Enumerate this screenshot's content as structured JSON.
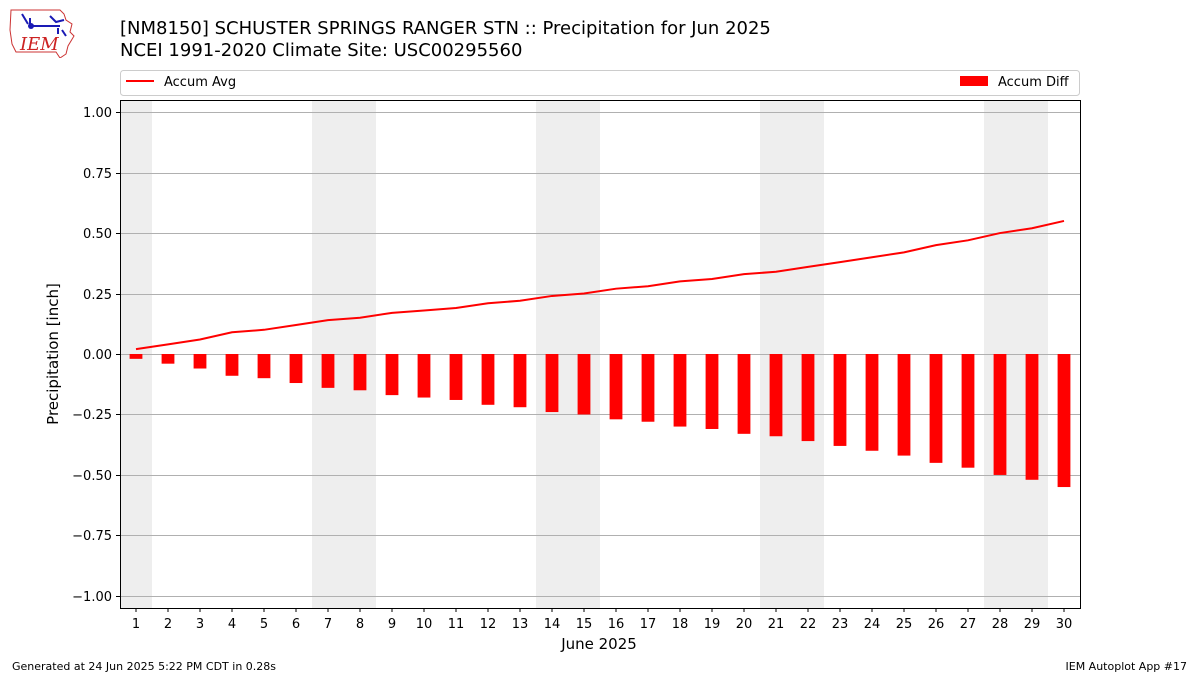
{
  "header": {
    "title_line1": "[NM8150] SCHUSTER SPRINGS RANGER STN :: Precipitation for Jun 2025",
    "title_line2": "NCEI 1991-2020 Climate Site: USC00295560"
  },
  "logo": {
    "text": "IEM",
    "icon": "iem-iowa-logo"
  },
  "footer": {
    "generated": "Generated at 24 Jun 2025 5:22 PM CDT in 0.28s",
    "app": "IEM Autoplot App #17"
  },
  "colors": {
    "series": "#ff0000",
    "weekend_shade": "#eeeeee",
    "grid": "#b0b0b0"
  },
  "chart_data": {
    "type": "bar",
    "xlabel": "June 2025",
    "ylabel": "Precipitation [inch]",
    "ylim": [
      -1.05,
      1.05
    ],
    "xlim": [
      0.5,
      30.5
    ],
    "yticks": [
      "−1.00",
      "−0.75",
      "−0.50",
      "−0.25",
      "0.00",
      "0.25",
      "0.50",
      "0.75",
      "1.00"
    ],
    "ytick_values": [
      -1.0,
      -0.75,
      -0.5,
      -0.25,
      0.0,
      0.25,
      0.5,
      0.75,
      1.0
    ],
    "categories": [
      "1",
      "2",
      "3",
      "4",
      "5",
      "6",
      "7",
      "8",
      "9",
      "10",
      "11",
      "12",
      "13",
      "14",
      "15",
      "16",
      "17",
      "18",
      "19",
      "20",
      "21",
      "22",
      "23",
      "24",
      "25",
      "26",
      "27",
      "28",
      "29",
      "30"
    ],
    "grid": "horizontal",
    "legend_placement": "top, above plot",
    "weekend_days": [
      1,
      7,
      8,
      14,
      15,
      21,
      22,
      28,
      29
    ],
    "series": [
      {
        "name": "Accum Avg",
        "kind": "line",
        "color": "#ff0000",
        "values": [
          0.02,
          0.04,
          0.06,
          0.09,
          0.1,
          0.12,
          0.14,
          0.15,
          0.17,
          0.18,
          0.19,
          0.21,
          0.22,
          0.24,
          0.25,
          0.27,
          0.28,
          0.3,
          0.31,
          0.33,
          0.34,
          0.36,
          0.38,
          0.4,
          0.42,
          0.45,
          0.47,
          0.5,
          0.52,
          0.55
        ]
      },
      {
        "name": "Accum Diff",
        "kind": "bar",
        "color": "#ff0000",
        "values": [
          -0.02,
          -0.04,
          -0.06,
          -0.09,
          -0.1,
          -0.12,
          -0.14,
          -0.15,
          -0.17,
          -0.18,
          -0.19,
          -0.21,
          -0.22,
          -0.24,
          -0.25,
          -0.27,
          -0.28,
          -0.3,
          -0.31,
          -0.33,
          -0.34,
          -0.36,
          -0.38,
          -0.4,
          -0.42,
          -0.45,
          -0.47,
          -0.5,
          -0.52,
          -0.55
        ]
      }
    ]
  }
}
